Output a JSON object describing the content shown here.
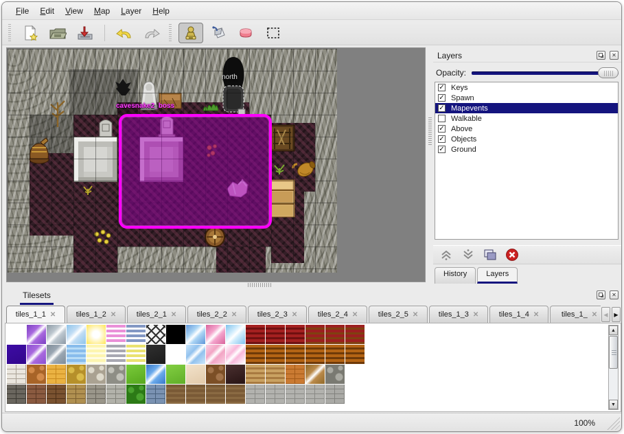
{
  "menu": {
    "items": [
      "File",
      "Edit",
      "View",
      "Map",
      "Layer",
      "Help"
    ]
  },
  "toolbar": {
    "buttons": [
      "new-map",
      "open-map",
      "save-map",
      "undo",
      "redo",
      "stamp-tool",
      "fill-tool",
      "eraser-tool",
      "rect-select-tool"
    ],
    "selected_tool": "stamp-tool"
  },
  "map": {
    "labels": {
      "north": "north",
      "boss": "cavesnake2_boss"
    }
  },
  "layers_panel": {
    "title": "Layers",
    "opacity_label": "Opacity:",
    "layers": [
      {
        "name": "Keys",
        "checked": true,
        "selected": false
      },
      {
        "name": "Spawn",
        "checked": true,
        "selected": false
      },
      {
        "name": "Mapevents",
        "checked": true,
        "selected": true
      },
      {
        "name": "Walkable",
        "checked": false,
        "selected": false
      },
      {
        "name": "Above",
        "checked": true,
        "selected": false
      },
      {
        "name": "Objects",
        "checked": true,
        "selected": false
      },
      {
        "name": "Ground",
        "checked": true,
        "selected": false
      }
    ],
    "tabs": [
      {
        "label": "History",
        "active": false
      },
      {
        "label": "Layers",
        "active": true
      }
    ]
  },
  "tilesets_panel": {
    "title": "Tilesets",
    "tabs": [
      {
        "label": "tiles_1_1",
        "active": true
      },
      {
        "label": "tiles_1_2",
        "active": false
      },
      {
        "label": "tiles_2_1",
        "active": false
      },
      {
        "label": "tiles_2_2",
        "active": false
      },
      {
        "label": "tiles_2_3",
        "active": false
      },
      {
        "label": "tiles_2_4",
        "active": false
      },
      {
        "label": "tiles_2_5",
        "active": false
      },
      {
        "label": "tiles_1_3",
        "active": false
      },
      {
        "label": "tiles_1_4",
        "active": false
      },
      {
        "label": "tiles_1_",
        "active": false
      }
    ],
    "tile_rows": [
      [
        [
          "#ffffff",
          "#ffffff",
          "f"
        ],
        [
          "#a868de",
          "#7b40c2",
          "d"
        ],
        [
          "#bcc6ce",
          "#8d9aa6",
          "d"
        ],
        [
          "#c0dcf4",
          "#8ec4ea",
          "d"
        ],
        [
          "#ffffff",
          "#ffe760",
          "r"
        ],
        [
          "#ea90d8",
          "#ffffff",
          "h"
        ],
        [
          "#8398c4",
          "#ffffff",
          "h"
        ],
        [
          "#f4f4f4",
          "#303030",
          "x"
        ],
        [
          "#000000",
          "#000000",
          "f"
        ],
        [
          "#aad4f4",
          "#6096d8",
          "d"
        ],
        [
          "#f4a4cc",
          "#d8649c",
          "d"
        ],
        [
          "#d0ecfc",
          "#80c2ec",
          "d"
        ],
        [
          "#a42020",
          "#701010",
          "h"
        ],
        [
          "#a42020",
          "#701010",
          "h"
        ],
        [
          "#a42020",
          "#701010",
          "h"
        ],
        [
          "#9c2020",
          "#804010",
          "h"
        ],
        [
          "#9c2020",
          "#804010",
          "h"
        ],
        [
          "#9c2020",
          "#804010",
          "h"
        ]
      ],
      [
        [
          "#3d0ca4",
          "#32078c",
          "f"
        ],
        [
          "#a868de",
          "#8a50d0",
          "d"
        ],
        [
          "#9aa6b2",
          "#7e8c98",
          "d"
        ],
        [
          "#88bcec",
          "#b8dcf6",
          "h"
        ],
        [
          "#fdf5b0",
          "#fffce2",
          "h"
        ],
        [
          "#a8a8b2",
          "#ffffff",
          "h"
        ],
        [
          "#eae270",
          "#ffffff",
          "h"
        ],
        [
          "#303030",
          "#1c1c1c",
          "f"
        ],
        [
          "#ffffff",
          "#ffffff",
          "f"
        ],
        [
          "#92c2ee",
          "#cce6fa",
          "d"
        ],
        [
          "#f2a4c4",
          "#fad2e4",
          "d"
        ],
        [
          "#f8b8da",
          "#ffffff",
          "d"
        ],
        [
          "#b46414",
          "#6f3a08",
          "h"
        ],
        [
          "#b46414",
          "#6f3a08",
          "h"
        ],
        [
          "#b46414",
          "#6f3a08",
          "h"
        ],
        [
          "#b46414",
          "#6f3a08",
          "h"
        ],
        [
          "#b46414",
          "#6f3a08",
          "h"
        ],
        [
          "#b46414",
          "#6f3a08",
          "h"
        ]
      ],
      [
        [
          "#eae6de",
          "#aaa296",
          "b"
        ],
        [
          "#d28a4a",
          "#a86428",
          "p"
        ],
        [
          "#eab242",
          "#c8891e",
          "b"
        ],
        [
          "#dabb4a",
          "#b6902a",
          "p"
        ],
        [
          "#dedacc",
          "#aaa292",
          "p"
        ],
        [
          "#c2c2ba",
          "#8e8e86",
          "p"
        ],
        [
          "#7aca3a",
          "#57a81e",
          "f"
        ],
        [
          "#6aaaec",
          "#3878c8",
          "d"
        ],
        [
          "#82ce42",
          "#60ae28",
          "f"
        ],
        [
          "#f2e2ca",
          "#e2caaa",
          "f"
        ],
        [
          "#a2734a",
          "#7c4f26",
          "p"
        ],
        [
          "#4a3030",
          "#281414",
          "f"
        ],
        [
          "#caa262",
          "#a87a40",
          "h"
        ],
        [
          "#caa262",
          "#a87a40",
          "h"
        ],
        [
          "#ca7a32",
          "#a25a18",
          "b"
        ],
        [
          "#ba8a4a",
          "#926a2a",
          "d"
        ],
        [
          "#aaaaa2",
          "#7a7a72",
          "p"
        ],
        [
          "#ffffff",
          "#ffffff",
          "f"
        ]
      ],
      [
        [
          "#6a665e",
          "#3c3a34",
          "b"
        ],
        [
          "#8a5a40",
          "#5c3824",
          "b"
        ],
        [
          "#7a5230",
          "#4e3018",
          "b"
        ],
        [
          "#b09050",
          "#7c6030",
          "b"
        ],
        [
          "#9a968a",
          "#6a665c",
          "b"
        ],
        [
          "#b2b2aa",
          "#82827a",
          "b"
        ],
        [
          "#4aa22e",
          "#2c7a16",
          "p"
        ],
        [
          "#7a92b2",
          "#4a627e",
          "b"
        ],
        [
          "#7a5a36",
          "#8a6a42",
          "h"
        ],
        [
          "#7a5a36",
          "#8a6a42",
          "h"
        ],
        [
          "#7a5a36",
          "#8a6a42",
          "h"
        ],
        [
          "#7a5a36",
          "#8a6a42",
          "h"
        ],
        [
          "#b2b2ae",
          "#8a8a86",
          "b"
        ],
        [
          "#b2b2ae",
          "#8a8a86",
          "b"
        ],
        [
          "#b2b2ae",
          "#8a8a86",
          "b"
        ],
        [
          "#b2b2ae",
          "#8a8a86",
          "b"
        ],
        [
          "#aaaaa6",
          "#82827e",
          "b"
        ],
        [
          "#ffffff",
          "#ffffff",
          "f"
        ]
      ]
    ]
  },
  "statusbar": {
    "zoom": "100%"
  },
  "glyphs": {
    "check": "✓",
    "close": "✕",
    "left": "◀",
    "right": "▶",
    "up": "▲",
    "down": "▼"
  },
  "colors": {
    "selection_magenta": "#ff00ff",
    "accent_navy": "#14147e",
    "canvas_gray": "#808080"
  }
}
